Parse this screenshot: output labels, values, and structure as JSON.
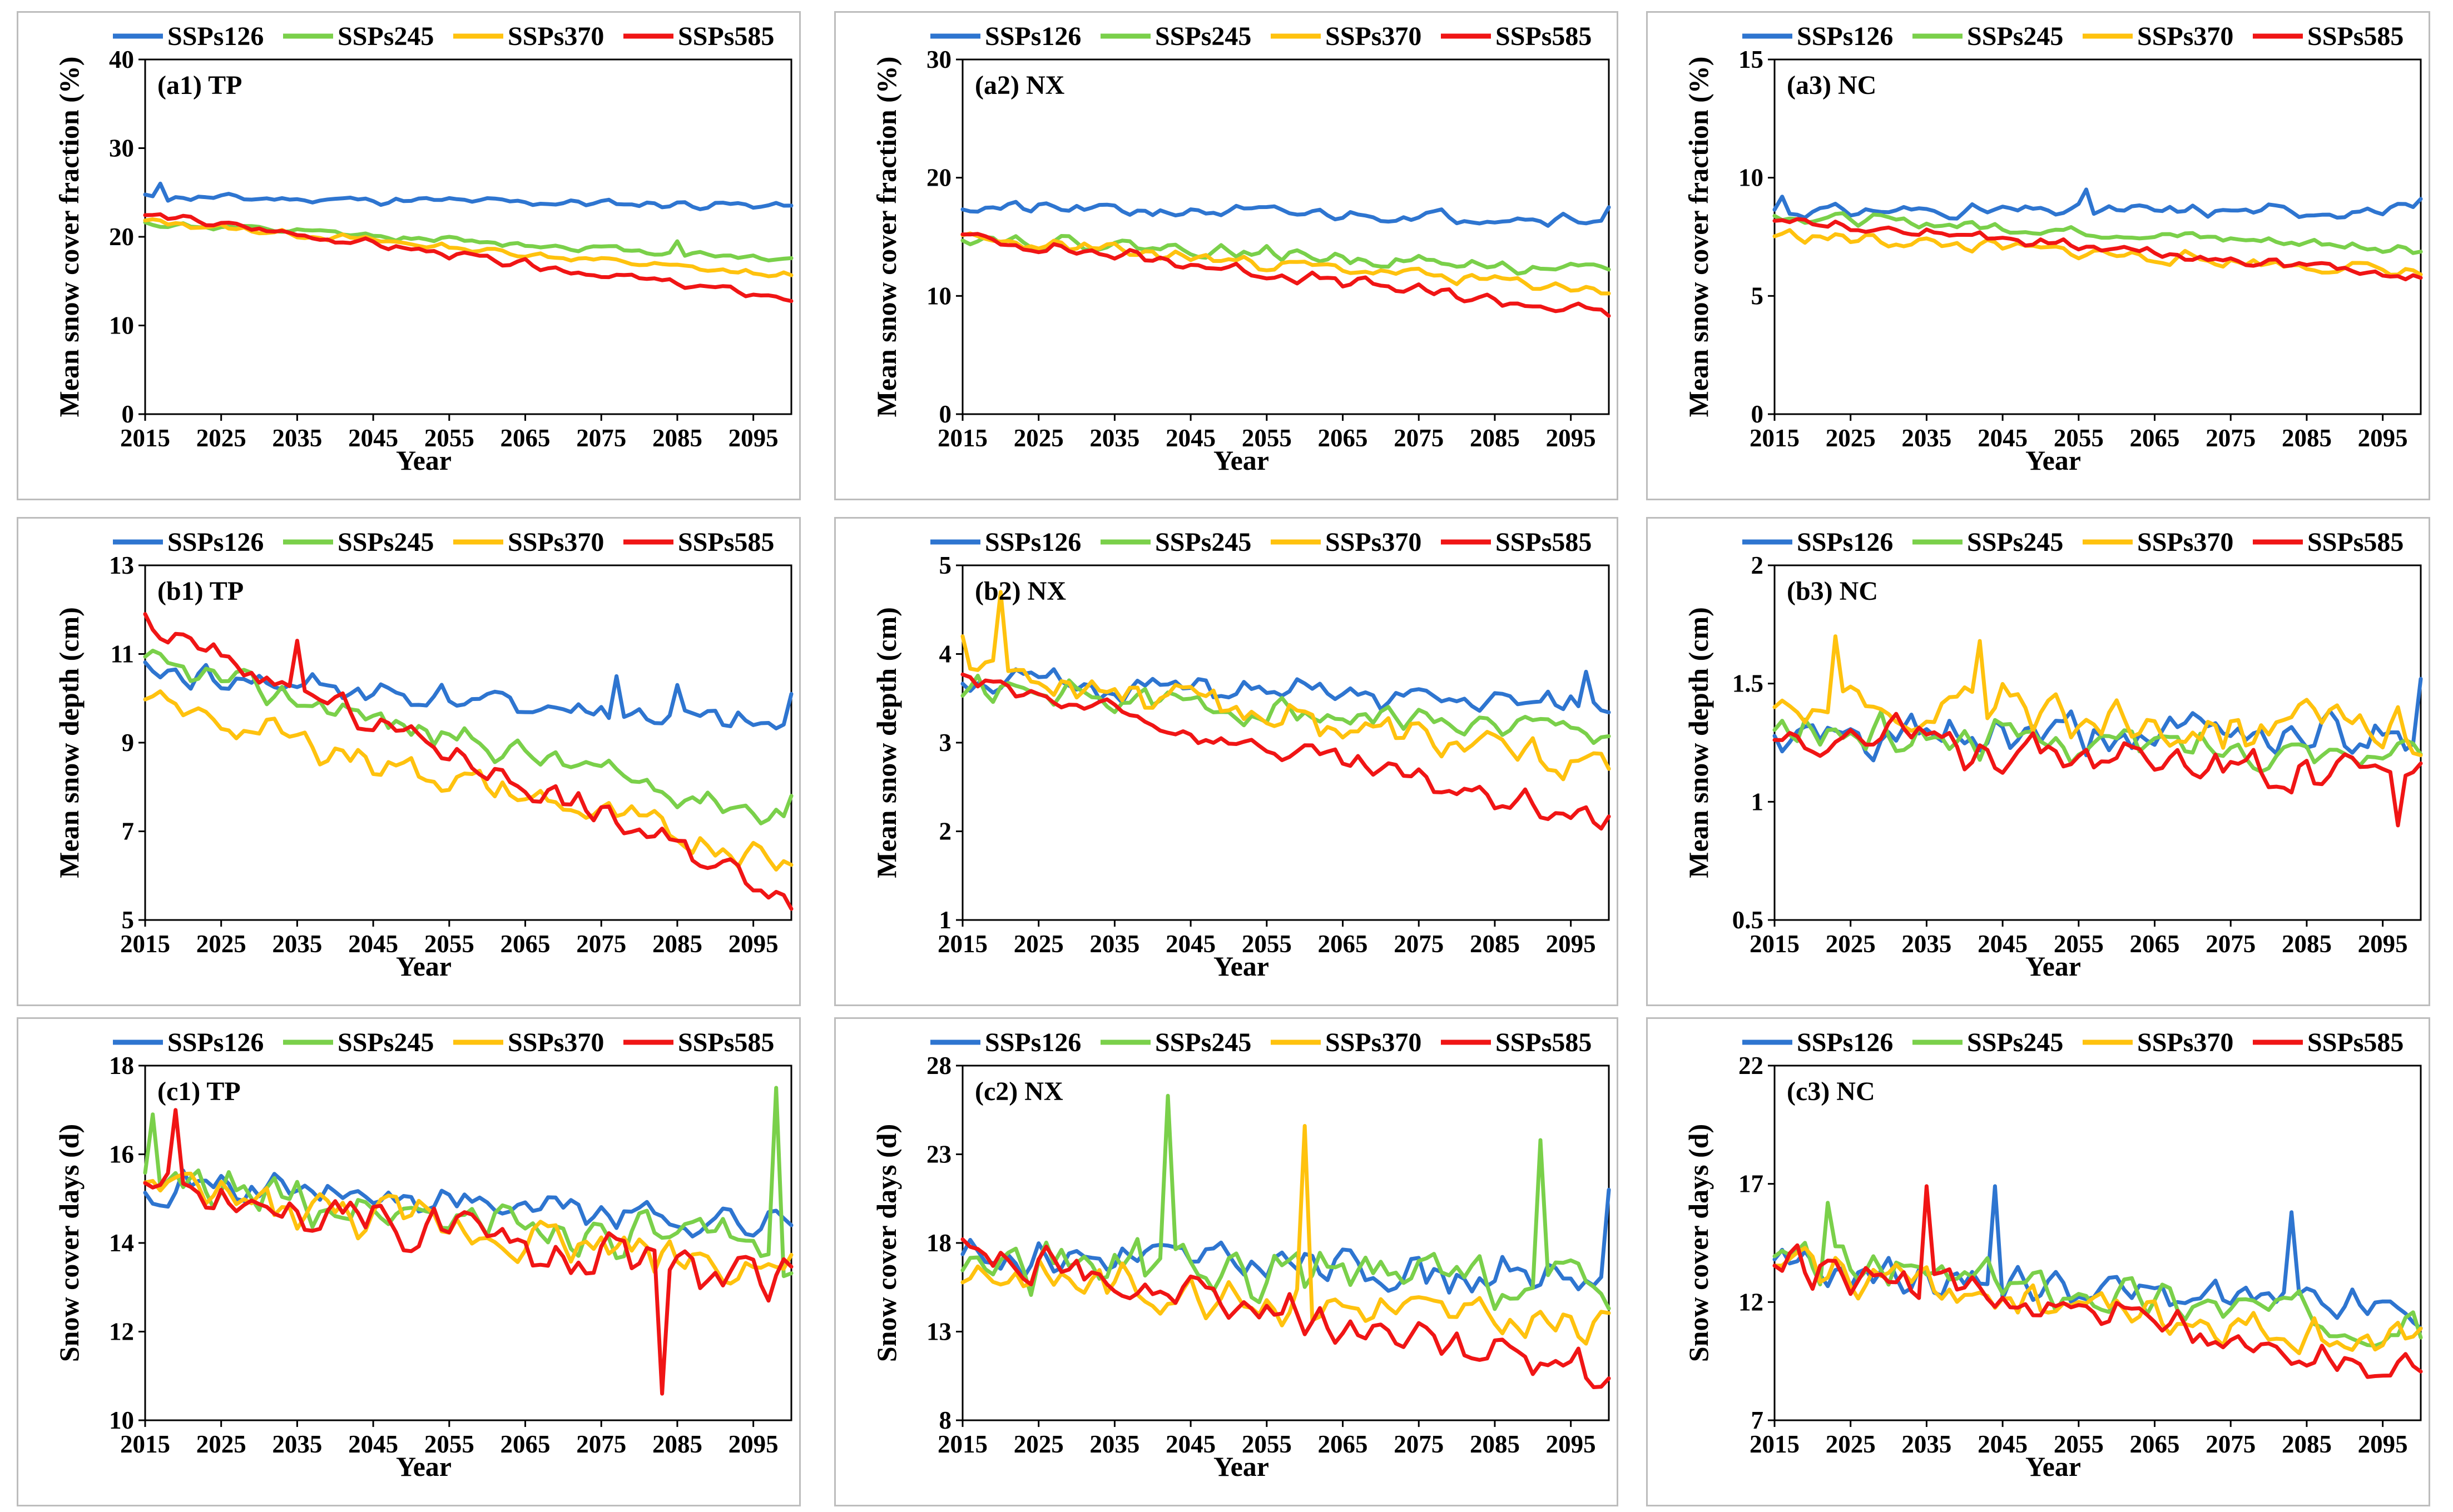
{
  "figure": {
    "legend": [
      {
        "name": "SSPs126",
        "color": "#2E75D0"
      },
      {
        "name": "SSPs245",
        "color": "#7AD04A"
      },
      {
        "name": "SSPs370",
        "color": "#FFC20E"
      },
      {
        "name": "SSPs585",
        "color": "#F01515"
      }
    ],
    "x_ticks": [
      "2015",
      "2025",
      "2035",
      "2045",
      "2055",
      "2065",
      "2075",
      "2085",
      "2095"
    ],
    "x_label": "Year"
  },
  "chart_data": [
    {
      "id": "a1",
      "type": "line",
      "title": "(a1) TP",
      "ylabel": "Mean snow cover fraction (%)",
      "xlabel": "Year",
      "ylim": [
        0,
        40
      ],
      "yticks": [
        "0",
        "10",
        "20",
        "30",
        "40"
      ],
      "xlim": [
        2015,
        2100
      ],
      "series": [
        {
          "name": "SSPs126",
          "start": 24.5,
          "end": 23.5,
          "noise": 0.6,
          "seed": 11,
          "spikes": [
            [
              2017,
              26
            ]
          ]
        },
        {
          "name": "SSPs245",
          "start": 21.5,
          "end": 17.5,
          "noise": 0.5,
          "seed": 12,
          "spikes": [
            [
              2085,
              19.5
            ]
          ]
        },
        {
          "name": "SSPs370",
          "start": 21.8,
          "end": 15.5,
          "noise": 0.5,
          "seed": 13
        },
        {
          "name": "SSPs585",
          "start": 22.5,
          "end": 13.0,
          "noise": 0.6,
          "seed": 14
        }
      ]
    },
    {
      "id": "a2",
      "type": "line",
      "title": "(a2) NX",
      "ylabel": "Mean snow cover fraction (%)",
      "xlabel": "Year",
      "ylim": [
        0,
        30
      ],
      "yticks": [
        "0",
        "10",
        "20",
        "30"
      ],
      "xlim": [
        2015,
        2100
      ],
      "series": [
        {
          "name": "SSPs126",
          "start": 17.5,
          "end": 16.5,
          "noise": 0.7,
          "seed": 21,
          "spikes": [
            [
              2100,
              17.5
            ]
          ]
        },
        {
          "name": "SSPs245",
          "start": 15.0,
          "end": 12.0,
          "noise": 0.7,
          "seed": 22
        },
        {
          "name": "SSPs370",
          "start": 14.8,
          "end": 10.5,
          "noise": 0.7,
          "seed": 23
        },
        {
          "name": "SSPs585",
          "start": 15.0,
          "end": 8.5,
          "noise": 0.7,
          "seed": 24
        }
      ]
    },
    {
      "id": "a3",
      "type": "line",
      "title": "(a3) NC",
      "ylabel": "Mean snow cover fraction (%)",
      "xlabel": "Year",
      "ylim": [
        0,
        15
      ],
      "yticks": [
        "0",
        "5",
        "10",
        "15"
      ],
      "xlim": [
        2015,
        2100
      ],
      "series": [
        {
          "name": "SSPs126",
          "start": 8.6,
          "end": 8.6,
          "noise": 0.35,
          "seed": 31,
          "spikes": [
            [
              2016,
              9.2
            ],
            [
              2056,
              9.5
            ],
            [
              2100,
              9.1
            ]
          ]
        },
        {
          "name": "SSPs245",
          "start": 8.4,
          "end": 7.0,
          "noise": 0.3,
          "seed": 32
        },
        {
          "name": "SSPs370",
          "start": 7.6,
          "end": 6.0,
          "noise": 0.35,
          "seed": 33
        },
        {
          "name": "SSPs585",
          "start": 8.3,
          "end": 5.8,
          "noise": 0.3,
          "seed": 34
        }
      ]
    },
    {
      "id": "b1",
      "type": "line",
      "title": "(b1) TP",
      "ylabel": "Mean snow depth (cm)",
      "xlabel": "Year",
      "ylim": [
        5,
        13
      ],
      "yticks": [
        "5",
        "7",
        "9",
        "11",
        "13"
      ],
      "xlim": [
        2015,
        2100
      ],
      "series": [
        {
          "name": "SSPs126",
          "start": 10.6,
          "end": 9.3,
          "noise": 0.4,
          "seed": 41,
          "spikes": [
            [
              2077,
              10.5
            ],
            [
              2085,
              10.3
            ],
            [
              2100,
              10.1
            ]
          ]
        },
        {
          "name": "SSPs245",
          "start": 10.8,
          "end": 7.3,
          "noise": 0.4,
          "seed": 42,
          "spikes": [
            [
              2100,
              7.8
            ]
          ]
        },
        {
          "name": "SSPs370",
          "start": 9.9,
          "end": 6.3,
          "noise": 0.45,
          "seed": 43
        },
        {
          "name": "SSPs585",
          "start": 11.6,
          "end": 5.6,
          "noise": 0.4,
          "seed": 44,
          "spikes": [
            [
              2015,
              11.9
            ],
            [
              2035,
              11.3
            ]
          ]
        }
      ]
    },
    {
      "id": "b2",
      "type": "line",
      "title": "(b2) NX",
      "ylabel": "Mean snow depth (cm)",
      "xlabel": "Year",
      "ylim": [
        1,
        5
      ],
      "yticks": [
        "1",
        "2",
        "3",
        "4",
        "5"
      ],
      "xlim": [
        2015,
        2100
      ],
      "series": [
        {
          "name": "SSPs126",
          "start": 3.7,
          "end": 3.4,
          "noise": 0.2,
          "seed": 51,
          "spikes": [
            [
              2097,
              3.8
            ]
          ]
        },
        {
          "name": "SSPs245",
          "start": 3.6,
          "end": 3.1,
          "noise": 0.2,
          "seed": 52
        },
        {
          "name": "SSPs370",
          "start": 3.9,
          "end": 2.7,
          "noise": 0.25,
          "seed": 53,
          "spikes": [
            [
              2015,
              4.2
            ],
            [
              2020,
              4.7
            ]
          ]
        },
        {
          "name": "SSPs585",
          "start": 3.7,
          "end": 2.1,
          "noise": 0.18,
          "seed": 54
        }
      ]
    },
    {
      "id": "b3",
      "type": "line",
      "title": "(b3) NC",
      "ylabel": "Mean snow depth (cm)",
      "xlabel": "Year",
      "ylim": [
        0.5,
        2
      ],
      "yticks": [
        "0.5",
        "1",
        "1.5",
        "2"
      ],
      "xlim": [
        2015,
        2100
      ],
      "series": [
        {
          "name": "SSPs126",
          "start": 1.25,
          "end": 1.3,
          "noise": 0.13,
          "seed": 61,
          "spikes": [
            [
              2100,
              1.52
            ]
          ]
        },
        {
          "name": "SSPs245",
          "start": 1.3,
          "end": 1.2,
          "noise": 0.1,
          "seed": 62
        },
        {
          "name": "SSPs370",
          "start": 1.42,
          "end": 1.3,
          "noise": 0.14,
          "seed": 63,
          "spikes": [
            [
              2023,
              1.7
            ],
            [
              2042,
              1.68
            ]
          ]
        },
        {
          "name": "SSPs585",
          "start": 1.3,
          "end": 1.1,
          "noise": 0.12,
          "seed": 64,
          "spikes": [
            [
              2097,
              0.9
            ]
          ]
        }
      ]
    },
    {
      "id": "c1",
      "type": "line",
      "title": "(c1) TP",
      "ylabel": "Snow cover days (d)",
      "xlabel": "Year",
      "ylim": [
        10,
        18
      ],
      "yticks": [
        "10",
        "12",
        "14",
        "16",
        "18"
      ],
      "xlim": [
        2015,
        2100
      ],
      "series": [
        {
          "name": "SSPs126",
          "start": 15.4,
          "end": 14.4,
          "noise": 0.55,
          "seed": 71
        },
        {
          "name": "SSPs245",
          "start": 15.3,
          "end": 13.8,
          "noise": 0.65,
          "seed": 72,
          "spikes": [
            [
              2016,
              16.9
            ],
            [
              2098,
              17.5
            ]
          ]
        },
        {
          "name": "SSPs370",
          "start": 15.2,
          "end": 13.4,
          "noise": 0.65,
          "seed": 73
        },
        {
          "name": "SSPs585",
          "start": 15.3,
          "end": 13.0,
          "noise": 0.7,
          "seed": 74,
          "spikes": [
            [
              2019,
              17.0
            ],
            [
              2083,
              10.6
            ]
          ]
        }
      ]
    },
    {
      "id": "c2",
      "type": "line",
      "title": "(c2) NX",
      "ylabel": "Snow cover days (d)",
      "xlabel": "Year",
      "ylim": [
        8,
        28
      ],
      "yticks": [
        "8",
        "13",
        "18",
        "23",
        "28"
      ],
      "xlim": [
        2015,
        2100
      ],
      "series": [
        {
          "name": "SSPs126",
          "start": 17.5,
          "end": 16.0,
          "noise": 1.5,
          "seed": 81,
          "spikes": [
            [
              2100,
              21.0
            ]
          ]
        },
        {
          "name": "SSPs245",
          "start": 17.0,
          "end": 15.5,
          "noise": 2.0,
          "seed": 82,
          "spikes": [
            [
              2042,
              26.3
            ],
            [
              2091,
              23.8
            ]
          ]
        },
        {
          "name": "SSPs370",
          "start": 16.5,
          "end": 13.0,
          "noise": 1.6,
          "seed": 83,
          "spikes": [
            [
              2060,
              24.6
            ]
          ]
        },
        {
          "name": "SSPs585",
          "start": 17.5,
          "end": 10.5,
          "noise": 1.5,
          "seed": 84
        }
      ]
    },
    {
      "id": "c3",
      "type": "line",
      "title": "(c3) NC",
      "ylabel": "Snow cover days (d)",
      "xlabel": "Year",
      "ylim": [
        7,
        22
      ],
      "yticks": [
        "7",
        "12",
        "17",
        "22"
      ],
      "xlim": [
        2015,
        2100
      ],
      "series": [
        {
          "name": "SSPs126",
          "start": 13.5,
          "end": 11.5,
          "noise": 1.0,
          "seed": 91,
          "spikes": [
            [
              2044,
              16.9
            ],
            [
              2083,
              15.8
            ]
          ]
        },
        {
          "name": "SSPs245",
          "start": 13.8,
          "end": 11.0,
          "noise": 1.1,
          "seed": 92,
          "spikes": [
            [
              2022,
              16.2
            ]
          ]
        },
        {
          "name": "SSPs370",
          "start": 13.6,
          "end": 10.0,
          "noise": 1.1,
          "seed": 93
        },
        {
          "name": "SSPs585",
          "start": 13.8,
          "end": 9.0,
          "noise": 1.1,
          "seed": 94,
          "spikes": [
            [
              2035,
              16.9
            ]
          ]
        }
      ]
    }
  ]
}
